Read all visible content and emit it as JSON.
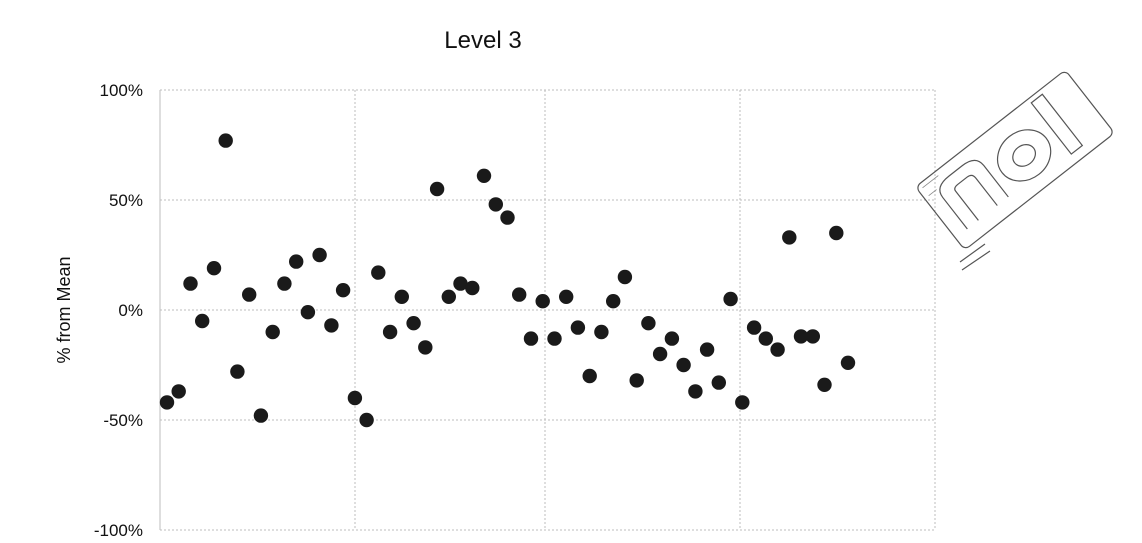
{
  "chart_data": {
    "type": "scatter",
    "title": "Level 3",
    "xlabel": "",
    "ylabel": "% from Mean",
    "ylim": [
      -100,
      100
    ],
    "yticks": [
      100,
      50,
      0,
      -50,
      -100
    ],
    "ytick_labels": [
      "100%",
      "50%",
      "0%",
      "-50%",
      "-100%"
    ],
    "grid": true,
    "legend": "none",
    "marker_color": "#1a1a1a",
    "series": [
      {
        "values": [
          -42,
          -37,
          12,
          -5,
          19,
          77,
          -28,
          7,
          -48,
          -10,
          12,
          22,
          -1,
          25,
          -7,
          9,
          -40,
          -50,
          17,
          -10,
          6,
          -6,
          -17,
          55,
          6,
          12,
          10,
          61,
          48,
          42,
          7,
          -13,
          4,
          -13,
          6,
          -8,
          -30,
          -10,
          4,
          15,
          -32,
          -6,
          -20,
          -13,
          -25,
          -37,
          -18,
          -33,
          5,
          -42,
          -8,
          -13,
          -18,
          33,
          -12,
          -12,
          -34,
          35,
          -24
        ]
      }
    ]
  }
}
